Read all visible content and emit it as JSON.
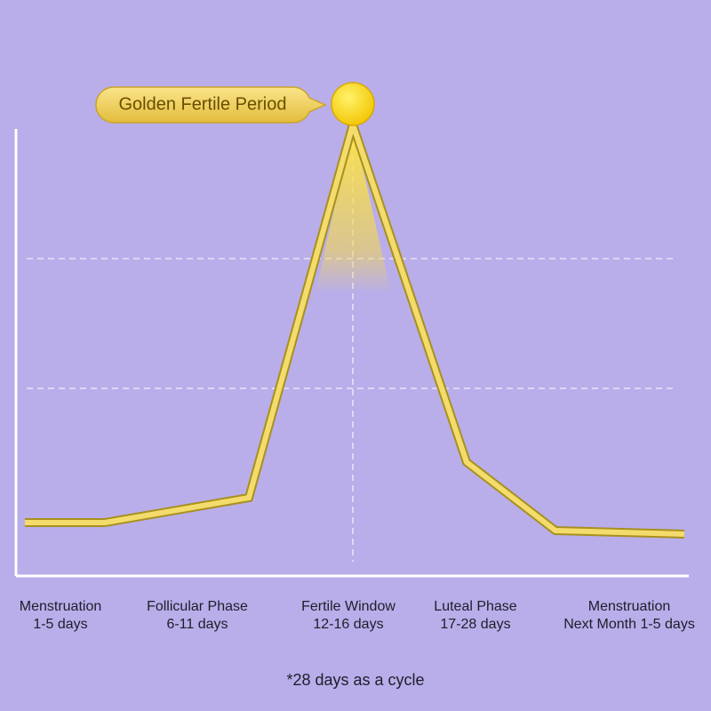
{
  "callout": "Golden Fertile Period",
  "phases": [
    {
      "name": "Menstruation",
      "days": "1-5 days"
    },
    {
      "name": "Follicular Phase",
      "days": "6-11 days"
    },
    {
      "name": "Fertile Window",
      "days": "12-16 days"
    },
    {
      "name": "Luteal Phase",
      "days": "17-28 days"
    },
    {
      "name": "Menstruation",
      "days": "Next Month 1-5 days"
    }
  ],
  "footnote": "*28 days as a cycle"
}
